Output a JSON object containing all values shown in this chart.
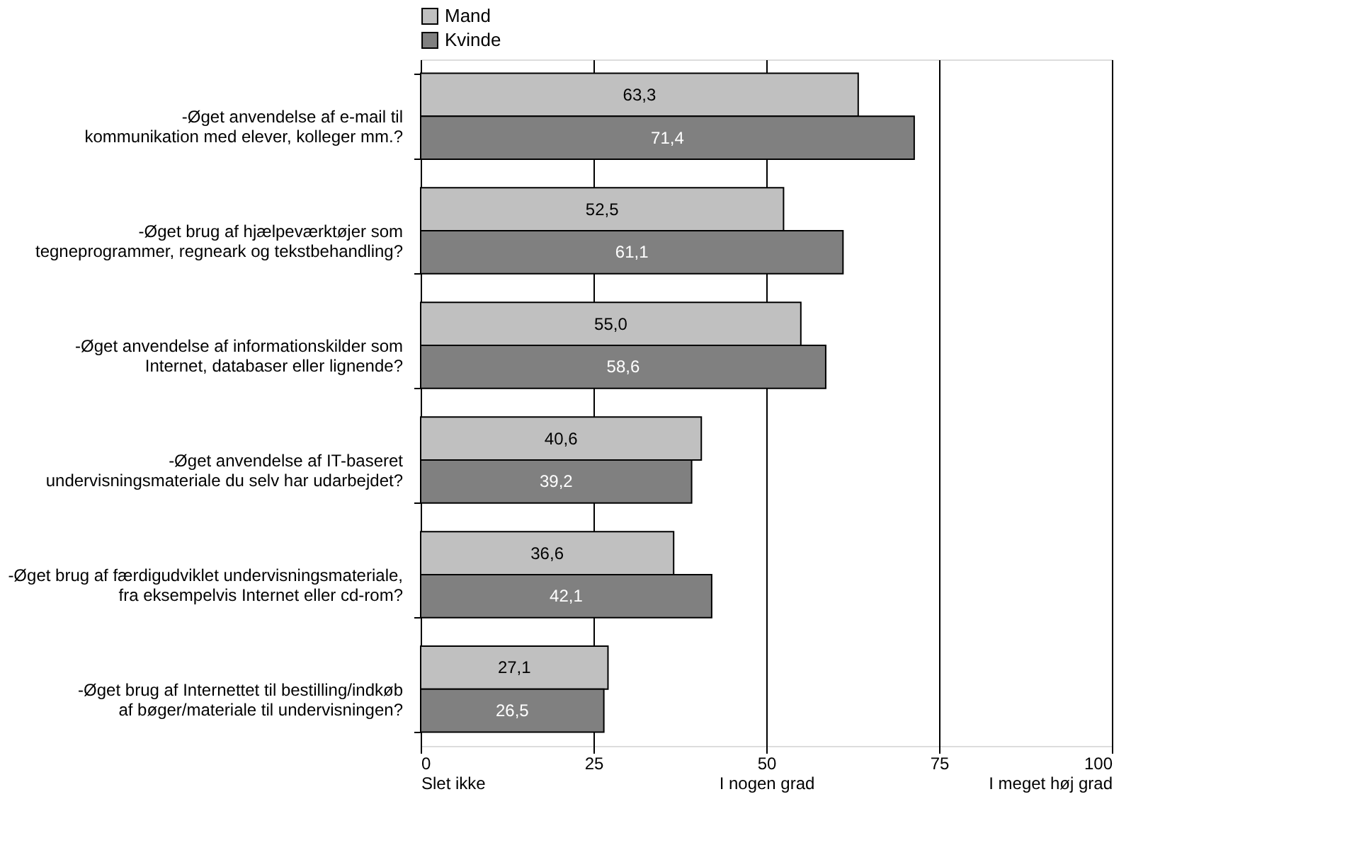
{
  "chart_data": {
    "type": "bar",
    "orientation": "horizontal",
    "categories": [
      "-Øget anvendelse af e-mail til\nkommunikation med elever, kolleger mm.?",
      "-Øget brug af hjælpeværktøjer som\ntegneprogrammer, regneark og tekstbehandling?",
      "-Øget anvendelse af informationskilder som\nInternet, databaser eller lignende?",
      "-Øget anvendelse af IT-baseret\nundervisningsmateriale du selv har udarbejdet?",
      "-Øget brug af færdigudviklet undervisningsmateriale,\nfra eksempelvis Internet eller cd-rom?",
      "-Øget brug af Internettet til bestilling/indkøb\naf bøger/materiale til undervisningen?"
    ],
    "series": [
      {
        "name": "Mand",
        "color": "#c0c0c0",
        "values": [
          63.3,
          52.5,
          55.0,
          40.6,
          36.6,
          27.1
        ],
        "value_labels": [
          "63,3",
          "52,5",
          "55,0",
          "40,6",
          "36,6",
          "27,1"
        ]
      },
      {
        "name": "Kvinde",
        "color": "#808080",
        "values": [
          71.4,
          61.1,
          58.6,
          39.2,
          42.1,
          26.5
        ],
        "value_labels": [
          "71,4",
          "61,1",
          "58,6",
          "39,2",
          "42,1",
          "26,5"
        ]
      }
    ],
    "xlim": [
      0,
      100
    ],
    "xticks": [
      {
        "value": 0,
        "label": "0\nSlet ikke"
      },
      25,
      {
        "value": 50,
        "label": "50\nI nogen grad"
      },
      75,
      {
        "value": 100,
        "label": "100\nI meget høj grad"
      }
    ],
    "grid": "x",
    "legend": "top"
  }
}
